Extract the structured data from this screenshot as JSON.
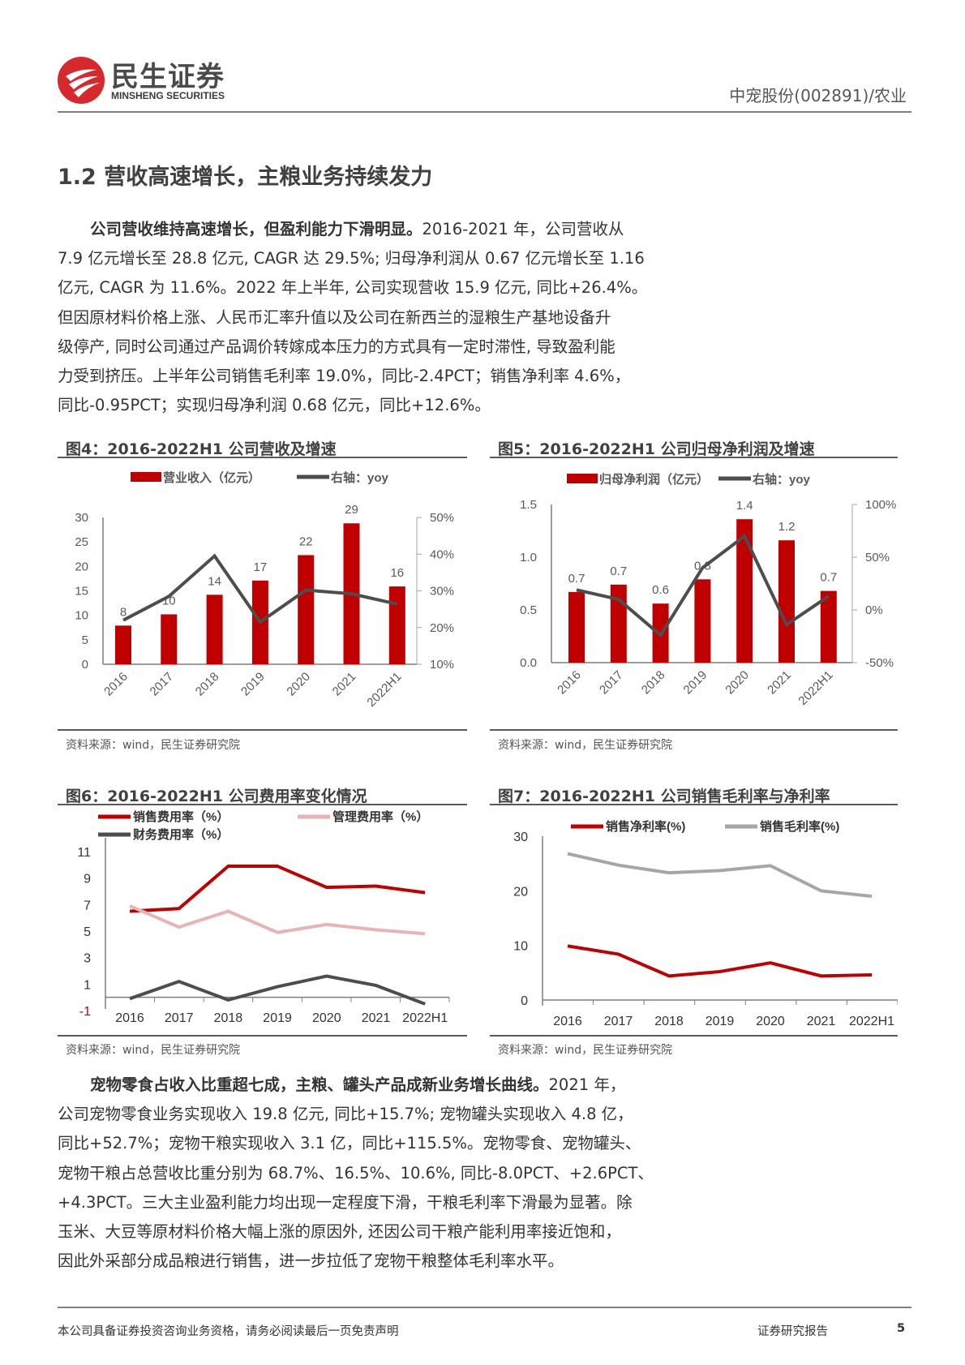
{
  "header": {
    "logo_cn": "民生证券",
    "logo_en": "MINSHENG SECURITIES",
    "stock": "中宠股份(002891)/农业"
  },
  "section_title": "1.2 营收高速增长，主粮业务持续发力",
  "paragraph1": {
    "lead": "公司营收维持高速增长，但盈利能力下滑明显。",
    "lines": [
      "2016-2021 年，公司营收从",
      "7.9 亿元增长至 28.8 亿元, CAGR 达 29.5%; 归母净利润从 0.67 亿元增长至 1.16",
      "亿元, CAGR 为 11.6%。2022 年上半年, 公司实现营收 15.9 亿元, 同比+26.4%。",
      "但因原材料价格上涨、人民币汇率升值以及公司在新西兰的湿粮生产基地设备升",
      "级停产, 同时公司通过产品调价转嫁成本压力的方式具有一定时滞性, 导致盈利能",
      "力受到挤压。上半年公司销售毛利率 19.0%，同比-2.4PCT；销售净利率 4.6%，",
      "同比-0.95PCT；实现归母净利润 0.68 亿元，同比+12.6%。"
    ]
  },
  "paragraph2": {
    "lead": "宠物零食占收入比重超七成，主粮、罐头产品成新业务增长曲线。",
    "lines": [
      "2021 年，",
      "公司宠物零食业务实现收入 19.8 亿元, 同比+15.7%; 宠物罐头实现收入 4.8 亿，",
      "同比+52.7%；宠物干粮实现收入 3.1 亿，同比+115.5%。宠物零食、宠物罐头、",
      "宠物干粮占总营收比重分别为 68.7%、16.5%、10.6%, 同比-8.0PCT、+2.6PCT、",
      "+4.3PCT。三大主业盈利能力均出现一定程度下滑，干粮毛利率下滑最为显著。除",
      "玉米、大豆等原材料价格大幅上涨的原因外, 还因公司干粮产能利用率接近饱和，",
      "因此外采部分成品粮进行销售，进一步拉低了宠物干粮整体毛利率水平。"
    ]
  },
  "source_text": "资料来源：wind，民生证券研究院",
  "footer": {
    "disclaimer": "本公司具备证券投资咨询业务资格，请务必阅读最后一页免责声明",
    "report_type": "证券研究报告",
    "page": "5"
  },
  "colors": {
    "red": "#c00000",
    "dark": "#4d4d4d",
    "pink": "#e6b4b4",
    "gray": "#a6a6a6"
  },
  "chart_data": [
    {
      "id": "fig4",
      "title": "图4：2016-2022H1 公司营收及增速",
      "type": "bar+line",
      "categories": [
        "2016",
        "2017",
        "2018",
        "2019",
        "2020",
        "2021",
        "2022H1"
      ],
      "series": [
        {
          "name": "营业收入（亿元）",
          "type": "bar",
          "axis": "left",
          "values": [
            7.9,
            10.2,
            14.2,
            17.1,
            22.3,
            28.8,
            15.9
          ],
          "labels": [
            "8",
            "10",
            "14",
            "17",
            "22",
            "29",
            "16"
          ]
        },
        {
          "name": "右轴：yoy",
          "type": "line",
          "axis": "right",
          "values": [
            22,
            28.5,
            39.5,
            21.5,
            30.2,
            29.2,
            26.4
          ]
        }
      ],
      "left_axis": {
        "min": 0,
        "max": 30,
        "ticks": [
          "0",
          "5",
          "10",
          "15",
          "20",
          "25",
          "30"
        ]
      },
      "right_axis": {
        "min": 10,
        "max": 50,
        "ticks": [
          "10%",
          "20%",
          "30%",
          "40%",
          "50%"
        ]
      }
    },
    {
      "id": "fig5",
      "title": "图5：2016-2022H1 公司归母净利润及增速",
      "type": "bar+line",
      "categories": [
        "2016",
        "2017",
        "2018",
        "2019",
        "2020",
        "2021",
        "2022H1"
      ],
      "series": [
        {
          "name": "归母净利润（亿元）",
          "type": "bar",
          "axis": "left",
          "values": [
            0.67,
            0.74,
            0.56,
            0.79,
            1.36,
            1.16,
            0.68
          ],
          "labels": [
            "0.7",
            "0.7",
            "0.6",
            "0.8",
            "1.4",
            "1.2",
            "0.7"
          ]
        },
        {
          "name": "右轴：yoy",
          "type": "line",
          "axis": "right",
          "values": [
            19,
            10,
            -24,
            40,
            70,
            -14,
            13
          ]
        }
      ],
      "left_axis": {
        "min": 0,
        "max": 1.5,
        "ticks": [
          "0.0",
          "0.5",
          "1.0",
          "1.5"
        ]
      },
      "right_axis": {
        "min": -50,
        "max": 100,
        "ticks": [
          "-50%",
          "0%",
          "50%",
          "100%"
        ]
      }
    },
    {
      "id": "fig6",
      "title": "图6：2016-2022H1 公司费用率变化情况",
      "type": "line",
      "categories": [
        "2016",
        "2017",
        "2018",
        "2019",
        "2020",
        "2021",
        "2022H1"
      ],
      "series": [
        {
          "name": "销售费用率（%）",
          "values": [
            6.5,
            6.7,
            9.9,
            9.9,
            8.3,
            8.4,
            7.9
          ]
        },
        {
          "name": "管理费用率（%）",
          "values": [
            6.9,
            5.3,
            6.5,
            4.9,
            5.5,
            5.1,
            4.8
          ]
        },
        {
          "name": "财务费用率（%）",
          "values": [
            -0.1,
            1.2,
            -0.2,
            0.8,
            1.6,
            0.9,
            -0.5
          ]
        }
      ],
      "left_axis": {
        "min": -1,
        "max": 11,
        "ticks": [
          "-1",
          "1",
          "3",
          "5",
          "7",
          "9",
          "11"
        ]
      }
    },
    {
      "id": "fig7",
      "title": "图7：2016-2022H1 公司销售毛利率与净利率",
      "type": "line",
      "categories": [
        "2016",
        "2017",
        "2018",
        "2019",
        "2020",
        "2021",
        "2022H1"
      ],
      "series": [
        {
          "name": "销售净利率(%)",
          "values": [
            9.9,
            8.4,
            4.4,
            5.2,
            6.8,
            4.4,
            4.6
          ]
        },
        {
          "name": "销售毛利率(%)",
          "values": [
            26.8,
            24.7,
            23.3,
            23.7,
            24.6,
            20.0,
            19.0
          ]
        }
      ],
      "left_axis": {
        "min": 0,
        "max": 30,
        "ticks": [
          "0",
          "10",
          "20",
          "30"
        ]
      }
    }
  ]
}
